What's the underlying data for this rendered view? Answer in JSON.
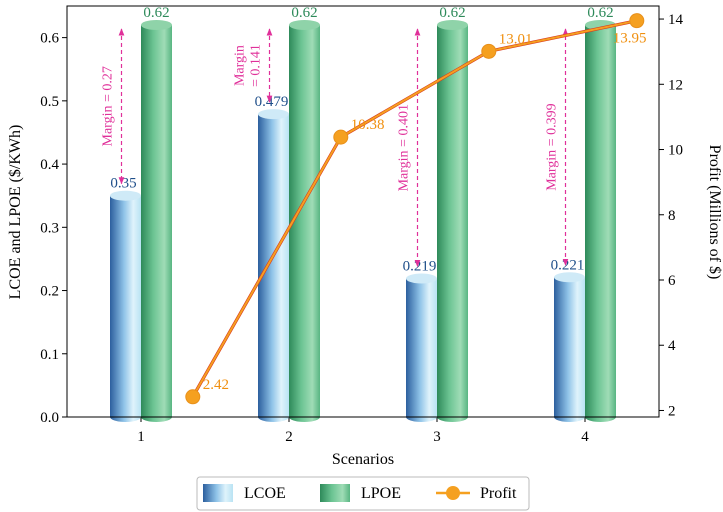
{
  "chart_data": {
    "type": "bar",
    "title": "",
    "xlabel": "Scenarios",
    "ylabel_left": "LCOE and LPOE ($/KWh)",
    "ylabel_right": "Profit (Millions of $)",
    "categories": [
      "1",
      "2",
      "3",
      "4"
    ],
    "ylim_left": [
      0,
      0.65
    ],
    "ylim_right": [
      1.8,
      14.4
    ],
    "yticks_left": [
      "0.0",
      "0.1",
      "0.2",
      "0.3",
      "0.4",
      "0.5",
      "0.6"
    ],
    "yticks_right": [
      "2",
      "4",
      "6",
      "8",
      "10",
      "12",
      "14"
    ],
    "grid": false,
    "legend_position": "bottom-center",
    "series": [
      {
        "name": "LCOE",
        "kind": "bar",
        "axis": "left",
        "values": [
          0.35,
          0.479,
          0.219,
          0.221
        ],
        "labels": [
          "0.35",
          "0.479",
          "0.219",
          "0.221"
        ],
        "color": "#3a78b8"
      },
      {
        "name": "LPOE",
        "kind": "bar",
        "axis": "left",
        "values": [
          0.62,
          0.62,
          0.62,
          0.62
        ],
        "labels": [
          "0.62",
          "0.62",
          "0.62",
          "0.62"
        ],
        "color": "#4fae78"
      },
      {
        "name": "Profit",
        "kind": "line",
        "axis": "right",
        "values": [
          2.42,
          10.38,
          13.01,
          13.95
        ],
        "labels": [
          "2.42",
          "10.38",
          "13.01",
          "13.95"
        ],
        "color": "#f5a020"
      }
    ],
    "annotations": [
      {
        "category": "1",
        "text_lines": [
          "Margin = 0.27"
        ],
        "from": 0.35,
        "to": 0.62
      },
      {
        "category": "2",
        "text_lines": [
          "Margin",
          "= 0.141"
        ],
        "from": 0.479,
        "to": 0.62
      },
      {
        "category": "3",
        "text_lines": [
          "Margin = 0.401"
        ],
        "from": 0.219,
        "to": 0.62
      },
      {
        "category": "4",
        "text_lines": [
          "Margin = 0.399"
        ],
        "from": 0.221,
        "to": 0.62
      }
    ]
  }
}
